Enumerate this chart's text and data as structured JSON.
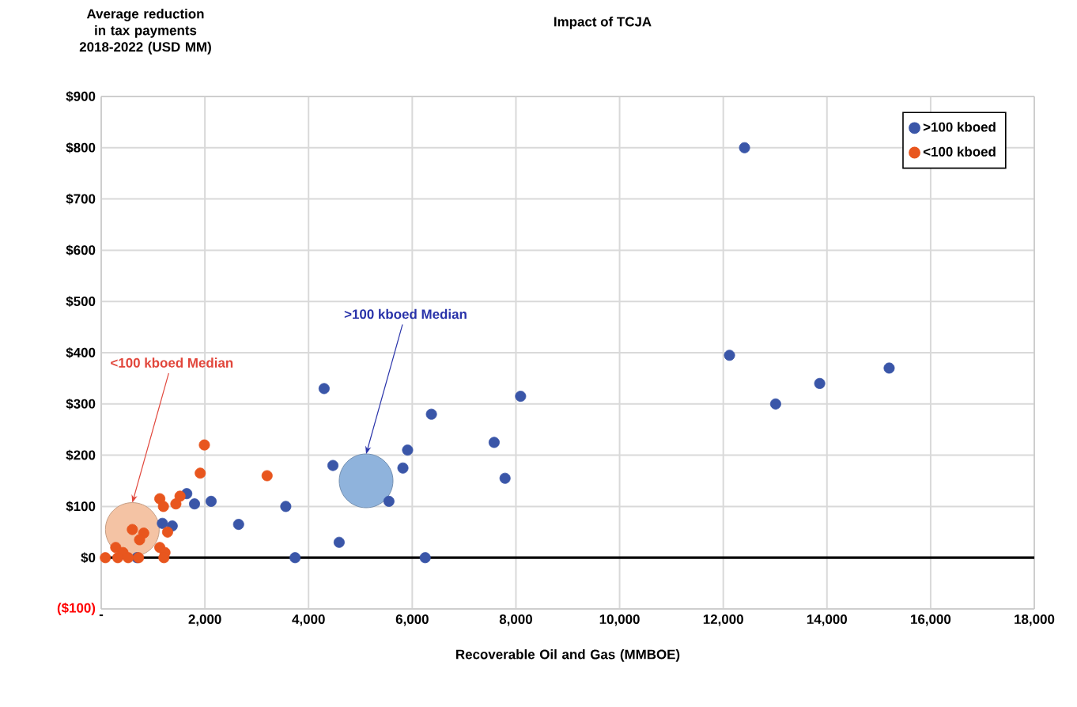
{
  "chart_data": {
    "type": "scatter",
    "title": "Impact of TCJA",
    "xlabel": "Recoverable Oil and Gas (MMBOE)",
    "ylabel": "Average reduction in tax payments 2018-2022 (USD MM)",
    "xlim": [
      0,
      18000
    ],
    "xticks": [
      {
        "value": 0,
        "label": "-"
      },
      {
        "value": 2000,
        "label": "2,000"
      },
      {
        "value": 4000,
        "label": "4,000"
      },
      {
        "value": 6000,
        "label": "6,000"
      },
      {
        "value": 8000,
        "label": "8,000"
      },
      {
        "value": 10000,
        "label": "10,000"
      },
      {
        "value": 12000,
        "label": "12,000"
      },
      {
        "value": 14000,
        "label": "14,000"
      },
      {
        "value": 16000,
        "label": "16,000"
      },
      {
        "value": 18000,
        "label": "18,000"
      }
    ],
    "ylim": [
      -100,
      900
    ],
    "yticks": [
      {
        "value": -100,
        "label": "($100)"
      },
      {
        "value": 0,
        "label": "$0"
      },
      {
        "value": 100,
        "label": "$100"
      },
      {
        "value": 200,
        "label": "$200"
      },
      {
        "value": 300,
        "label": "$300"
      },
      {
        "value": 400,
        "label": "$400"
      },
      {
        "value": 500,
        "label": "$500"
      },
      {
        "value": 600,
        "label": "$600"
      },
      {
        "value": 700,
        "label": "$700"
      },
      {
        "value": 800,
        "label": "$800"
      },
      {
        "value": 900,
        "label": "$900"
      }
    ],
    "grid": true,
    "legend": "top right",
    "ref_lines": [
      {
        "axis": "y",
        "value": 0,
        "color": "#000000"
      }
    ],
    "series": [
      {
        "name": ">100 kboed",
        "color": "#3a56a8",
        "x": [
          4300,
          4470,
          6370,
          5910,
          5820,
          5550,
          4590,
          3740,
          6250,
          3560,
          2650,
          2120,
          1800,
          1650,
          1180,
          1370,
          690,
          7580,
          7790,
          8090,
          12410,
          12120,
          13010,
          13860,
          15200
        ],
        "values": [
          330,
          180,
          280,
          210,
          175,
          110,
          30,
          0,
          0,
          100,
          65,
          110,
          105,
          125,
          67,
          62,
          0,
          225,
          155,
          315,
          800,
          395,
          300,
          340,
          370
        ]
      },
      {
        "name": "<100 kboed",
        "color": "#e8561e",
        "x": [
          1990,
          1910,
          3200,
          1130,
          1200,
          1440,
          1520,
          1280,
          600,
          820,
          740,
          1130,
          1230,
          1210,
          280,
          420,
          80,
          320,
          520,
          720
        ],
        "values": [
          220,
          165,
          160,
          115,
          100,
          105,
          120,
          50,
          55,
          48,
          35,
          20,
          10,
          0,
          20,
          10,
          0,
          0,
          0,
          0
        ]
      },
      {
        "type": "bubble",
        "color": "#f4c3a4",
        "x": [
          600
        ],
        "values": [
          55
        ],
        "sizes": [
          1
        ]
      },
      {
        "type": "bubble",
        "color": "#8fb3dc",
        "x": [
          5110
        ],
        "values": [
          150
        ],
        "sizes": [
          1
        ]
      }
    ],
    "annotations": [
      {
        "text": "<100 kboed Median",
        "x": 600,
        "y": 107
      },
      {
        "text": ">100 kboed Median",
        "x": 5110,
        "y": 202
      }
    ]
  }
}
